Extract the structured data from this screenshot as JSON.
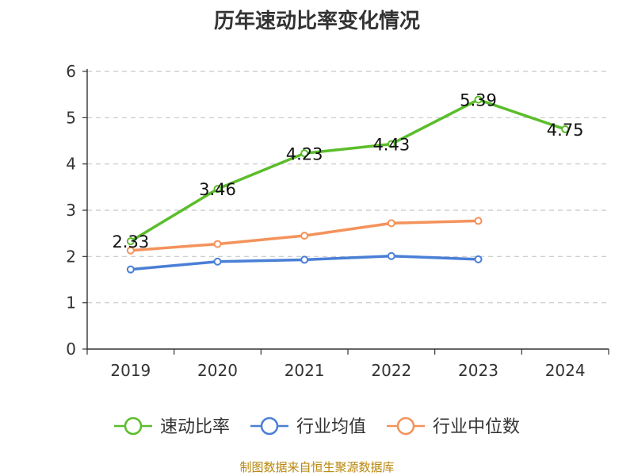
{
  "chart_data": {
    "type": "line",
    "title": "历年速动比率变化情况",
    "categories": [
      "2019",
      "2020",
      "2021",
      "2022",
      "2023",
      "2024"
    ],
    "ylim": [
      0,
      6
    ],
    "yticks": [
      0,
      1,
      2,
      3,
      4,
      5,
      6
    ],
    "grid": true,
    "legend_position": "bottom",
    "series": [
      {
        "name": "速动比率",
        "color": "#5bbd2b",
        "values": [
          2.33,
          3.46,
          4.23,
          4.43,
          5.39,
          4.75
        ],
        "labels": [
          "2.33",
          "3.46",
          "4.23",
          "4.43",
          "5.39",
          "4.75"
        ]
      },
      {
        "name": "行业均值",
        "color": "#4a7fd6",
        "values": [
          1.72,
          1.89,
          1.93,
          2.01,
          1.94,
          null
        ]
      },
      {
        "name": "行业中位数",
        "color": "#f4925b",
        "values": [
          2.13,
          2.27,
          2.45,
          2.72,
          2.77,
          null
        ]
      }
    ]
  },
  "footer": {
    "source": "制图数据来自恒生聚源数据库"
  }
}
